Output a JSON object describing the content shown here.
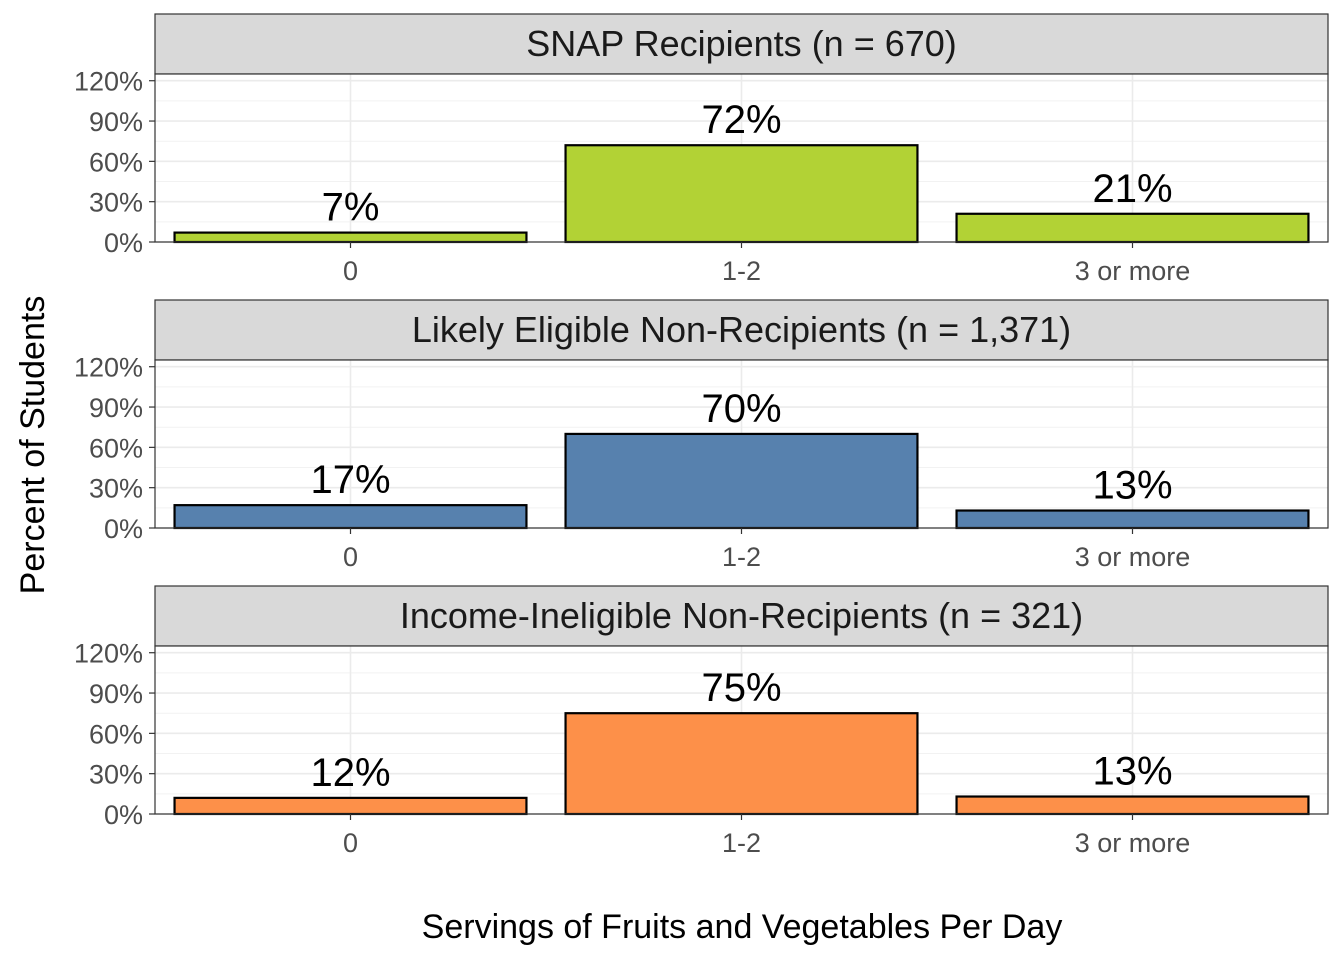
{
  "chart_data": {
    "type": "bar",
    "xlabel": "Servings of Fruits and Vegetables Per Day",
    "ylabel": "Percent of Students",
    "categories": [
      "0",
      "1-2",
      "3 or more"
    ],
    "ylim": [
      0,
      120
    ],
    "yticks": [
      0,
      30,
      60,
      90,
      120
    ],
    "ytick_labels": [
      "0%",
      "30%",
      "60%",
      "90%",
      "120%"
    ],
    "grid": true,
    "legend": "none",
    "panels": [
      {
        "title": "SNAP Recipients (n = 670)",
        "color": "#b2d235",
        "values": [
          7,
          72,
          21
        ],
        "labels": [
          "7%",
          "72%",
          "21%"
        ]
      },
      {
        "title": "Likely Eligible Non-Recipients (n = 1,371)",
        "color": "#5781ae",
        "values": [
          17,
          70,
          13
        ],
        "labels": [
          "17%",
          "70%",
          "13%"
        ]
      },
      {
        "title": "Income-Ineligible Non-Recipients (n = 321)",
        "color": "#fd9049",
        "values": [
          12,
          75,
          13
        ],
        "labels": [
          "12%",
          "75%",
          "13%"
        ]
      }
    ]
  }
}
